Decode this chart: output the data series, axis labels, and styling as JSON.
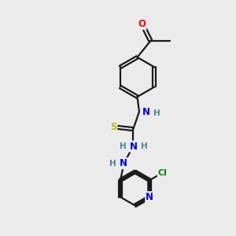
{
  "bg_color": "#ebebeb",
  "bond_color": "#1a1a1a",
  "atom_colors": {
    "O": "#ff0000",
    "N": "#0000dd",
    "S": "#bbbb00",
    "Cl": "#008800",
    "H": "#448899"
  },
  "lw": 1.6
}
